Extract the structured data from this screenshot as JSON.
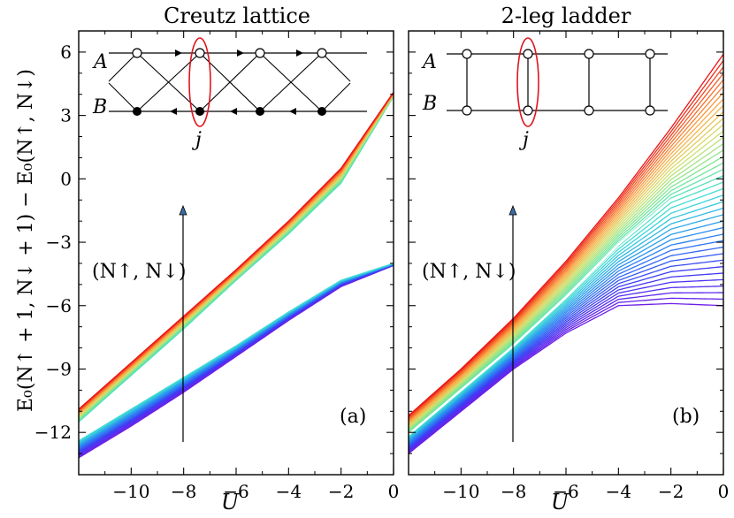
{
  "figure": {
    "ylabel": "E₀(N↑ + 1, N↓ + 1) − E₀(N↑, N↓)",
    "xlabel": "U"
  },
  "chart_data": [
    {
      "type": "line",
      "panel": "(a)",
      "title": "Creutz lattice",
      "xlabel": "U",
      "ylabel": "E₀(N↑ + 1, N↓ + 1) − E₀(N↑, N↓)",
      "xlim": [
        -12,
        0
      ],
      "ylim": [
        -14,
        7
      ],
      "xticks": [
        -10,
        -8,
        -6,
        -4,
        -2,
        0
      ],
      "xtick_labels": [
        "−10",
        "−8",
        "−6",
        "−4",
        "−2",
        "0"
      ],
      "yticks": [
        6,
        3,
        0,
        -3,
        -6,
        -9,
        -12
      ],
      "ytick_labels": [
        "6",
        "3",
        "0",
        "−3",
        "−6",
        "−9",
        "−12"
      ],
      "arrow_label": "(N↑, N↓)",
      "arrow": {
        "x": -8,
        "y_from": -13,
        "y_to": -1.5
      },
      "series_count": 34,
      "colormap": "rainbow (violet → red with increasing (N↑, N↓))",
      "series": [
        {
          "name": "lowest (N↑, N↓)",
          "x": [
            -12,
            -10,
            -8,
            -6,
            -4,
            -2,
            0
          ],
          "values": [
            -13.2,
            -11.7,
            -10.1,
            -8.4,
            -6.7,
            -5.1,
            -4.1
          ]
        },
        {
          "name": "lower branch top",
          "x": [
            -12,
            -10,
            -8,
            -6,
            -4,
            -2,
            0
          ],
          "values": [
            -12.4,
            -10.9,
            -9.4,
            -7.9,
            -6.3,
            -4.8,
            -4.0
          ]
        },
        {
          "name": "upper branch bottom",
          "x": [
            -12,
            -10,
            -8,
            -6,
            -4,
            -2,
            0
          ],
          "values": [
            -11.5,
            -9.3,
            -7.1,
            -4.8,
            -2.6,
            -0.2,
            3.9
          ]
        },
        {
          "name": "highest (N↑, N↓)",
          "x": [
            -12,
            -10,
            -8,
            -6,
            -4,
            -2,
            0
          ],
          "values": [
            -10.9,
            -8.7,
            -6.5,
            -4.3,
            -2.0,
            0.5,
            4.1
          ]
        }
      ],
      "inset": {
        "rows": [
          "A",
          "B"
        ],
        "site_label": "j",
        "description": "Creutz ladder: open circles on row A, filled circles on row B, arrowed horizontal bonds, crossed diagonal bonds; site pair j circled in red"
      },
      "panel_label": "(a)"
    },
    {
      "type": "line",
      "panel": "(b)",
      "title": "2-leg ladder",
      "xlabel": "U",
      "xlim": [
        -12,
        0
      ],
      "ylim": [
        -14,
        7
      ],
      "xticks": [
        -10,
        -8,
        -6,
        -4,
        -2,
        0
      ],
      "xtick_labels": [
        "−10",
        "−8",
        "−6",
        "−4",
        "−2",
        "0"
      ],
      "yticks": [
        6,
        3,
        0,
        -3,
        -6,
        -9,
        -12
      ],
      "arrow_label": "(N↑, N↓)",
      "arrow": {
        "x": -8,
        "y_from": -13,
        "y_to": -1.5
      },
      "series_count": 40,
      "colormap": "rainbow (violet → red with increasing (N↑, N↓)); one white curve in the middle",
      "series": [
        {
          "name": "lowest (N↑, N↓)",
          "x": [
            -12,
            -10,
            -8,
            -6,
            -4,
            -2,
            0
          ],
          "values": [
            -13.0,
            -11.0,
            -9.0,
            -7.3,
            -6.0,
            -5.9,
            -6.0
          ]
        },
        {
          "name": "highlighted (white)",
          "x": [
            -12,
            -10,
            -8,
            -6,
            -4,
            -2,
            0
          ],
          "values": [
            -12.1,
            -10.0,
            -7.9,
            -5.6,
            -3.1,
            -1.0,
            0.0
          ]
        },
        {
          "name": "highest (N↑, N↓)",
          "x": [
            -12,
            -10,
            -8,
            -6,
            -4,
            -2,
            0
          ],
          "values": [
            -11.2,
            -9.0,
            -6.6,
            -3.9,
            -0.9,
            2.4,
            5.9
          ]
        }
      ],
      "inset": {
        "rows": [
          "A",
          "B"
        ],
        "site_label": "j",
        "description": "2-leg ladder: open circles, horizontal legs and vertical rungs; rung j circled in red"
      },
      "panel_label": "(b)"
    }
  ]
}
